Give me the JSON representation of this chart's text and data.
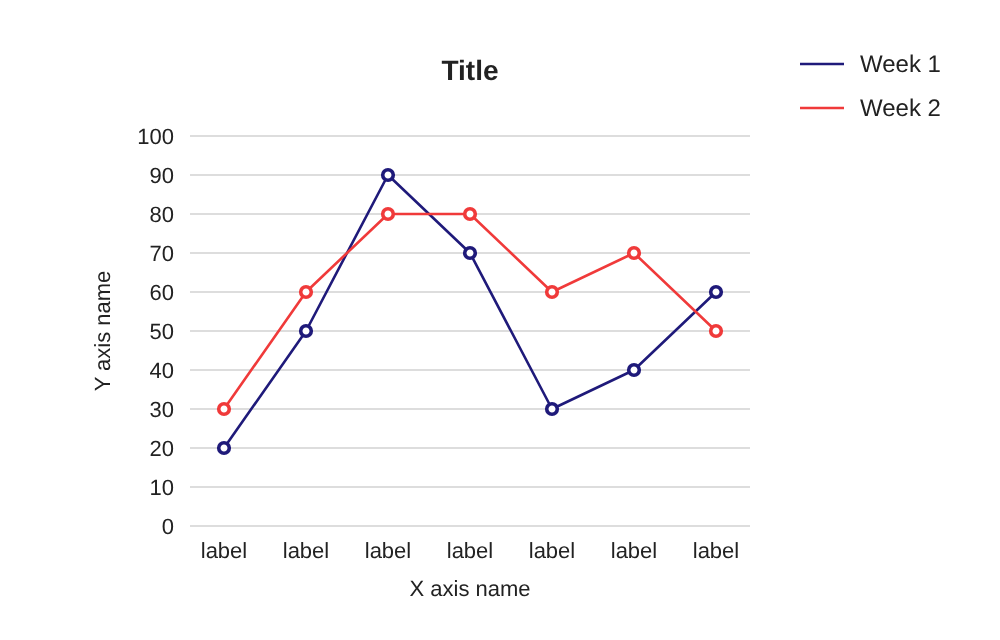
{
  "chart_data": {
    "type": "line",
    "title": "Title",
    "xlabel": "X axis name",
    "ylabel": "Y axis name",
    "categories": [
      "label",
      "label",
      "label",
      "label",
      "label",
      "label",
      "label"
    ],
    "series": [
      {
        "name": "Week 1",
        "color": "#1f1a7a",
        "values": [
          20,
          50,
          90,
          70,
          30,
          40,
          60
        ]
      },
      {
        "name": "Week 2",
        "color": "#f03a3a",
        "values": [
          30,
          60,
          80,
          80,
          60,
          70,
          50
        ]
      }
    ],
    "ylim": [
      0,
      100
    ],
    "yticks": [
      0,
      10,
      20,
      30,
      40,
      50,
      60,
      70,
      80,
      90,
      100
    ],
    "grid": "y",
    "legend": "top right",
    "marker": "circle"
  }
}
